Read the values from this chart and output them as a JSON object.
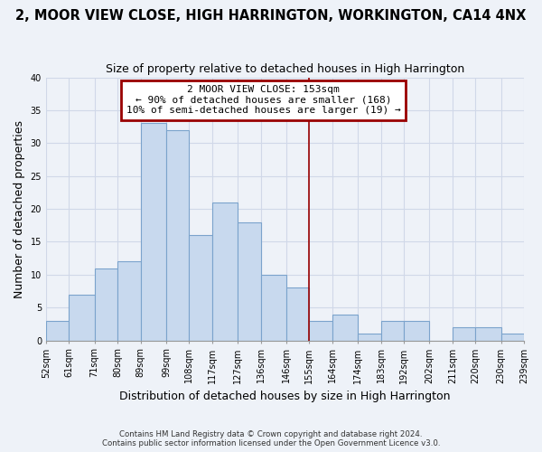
{
  "title": "2, MOOR VIEW CLOSE, HIGH HARRINGTON, WORKINGTON, CA14 4NX",
  "subtitle": "Size of property relative to detached houses in High Harrington",
  "xlabel": "Distribution of detached houses by size in High Harrington",
  "ylabel": "Number of detached properties",
  "bar_edges": [
    52,
    61,
    71,
    80,
    89,
    99,
    108,
    117,
    127,
    136,
    146,
    155,
    164,
    174,
    183,
    192,
    202,
    211,
    220,
    230,
    239
  ],
  "bar_heights": [
    3,
    7,
    11,
    12,
    33,
    32,
    16,
    21,
    18,
    10,
    8,
    3,
    4,
    1,
    3,
    3,
    0,
    2,
    2,
    1
  ],
  "bar_color": "#c8d9ee",
  "bar_edge_color": "#7ba3cc",
  "grid_color": "#d0d8e8",
  "vline_x": 155,
  "vline_color": "#990000",
  "ylim": [
    0,
    40
  ],
  "yticks": [
    0,
    5,
    10,
    15,
    20,
    25,
    30,
    35,
    40
  ],
  "tick_labels": [
    "52sqm",
    "61sqm",
    "71sqm",
    "80sqm",
    "89sqm",
    "99sqm",
    "108sqm",
    "117sqm",
    "127sqm",
    "136sqm",
    "146sqm",
    "155sqm",
    "164sqm",
    "174sqm",
    "183sqm",
    "192sqm",
    "202sqm",
    "211sqm",
    "220sqm",
    "230sqm",
    "239sqm"
  ],
  "annotation_title": "2 MOOR VIEW CLOSE: 153sqm",
  "annotation_line1": "← 90% of detached houses are smaller (168)",
  "annotation_line2": "10% of semi-detached houses are larger (19) →",
  "annotation_box_color": "#ffffff",
  "annotation_box_edge": "#990000",
  "footnote1": "Contains HM Land Registry data © Crown copyright and database right 2024.",
  "footnote2": "Contains public sector information licensed under the Open Government Licence v3.0.",
  "bg_color": "#eef2f8",
  "title_fontsize": 10.5,
  "subtitle_fontsize": 9,
  "ylabel_fontsize": 9,
  "xlabel_fontsize": 9,
  "tick_fontsize": 7
}
